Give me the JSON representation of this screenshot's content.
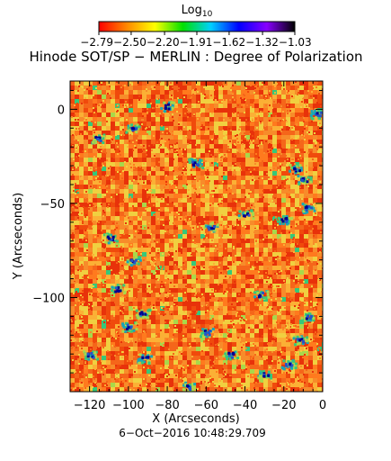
{
  "chart_data": {
    "type": "heatmap",
    "title": "Hinode SOT/SP − MERLIN : Degree of Polarization",
    "xlabel": "X (Arcseconds)",
    "ylabel": "Y (Arcseconds)",
    "footer": "6−Oct−2016 10:48:29.709",
    "xlim": [
      -130,
      0
    ],
    "ylim": [
      -150,
      15
    ],
    "xticks": [
      -120,
      -100,
      -80,
      -60,
      -40,
      -20,
      0
    ],
    "xtick_labels": [
      "−120",
      "−100",
      "−80",
      "−60",
      "−40",
      "−20",
      "0"
    ],
    "yticks": [
      0,
      -50,
      -100
    ],
    "ytick_labels": [
      "0",
      "−50",
      "−100"
    ],
    "colorbar": {
      "title_base": "Log",
      "title_sub": "10",
      "ticks": [
        -2.79,
        -2.5,
        -2.2,
        -1.91,
        -1.62,
        -1.32,
        -1.03
      ],
      "tick_labels": "−2.79−2.50−2.20−1.91−1.62−1.32−1.03",
      "colors": [
        "#ff0000",
        "#ff8800",
        "#ffff00",
        "#00e000",
        "#00d0ff",
        "#0000ff",
        "#8800ff",
        "#000000"
      ]
    },
    "map_colors": {
      "base": [
        "#e8320a",
        "#f04a0c",
        "#f5661a",
        "#ff7a1e",
        "#f78c2a",
        "#fbb035",
        "#f0d040"
      ],
      "high": [
        "#a8d84a",
        "#35c87a",
        "#18a6b8",
        "#2454c8",
        "#000090"
      ]
    },
    "features": [
      {
        "x": -116,
        "y": -15
      },
      {
        "x": -80,
        "y": 2
      },
      {
        "x": -98,
        "y": -10
      },
      {
        "x": -66,
        "y": -28
      },
      {
        "x": -14,
        "y": -31
      },
      {
        "x": -10,
        "y": -37
      },
      {
        "x": -40,
        "y": -55
      },
      {
        "x": -20,
        "y": -58
      },
      {
        "x": -58,
        "y": -62
      },
      {
        "x": -8,
        "y": -52
      },
      {
        "x": -110,
        "y": -68
      },
      {
        "x": -98,
        "y": -80
      },
      {
        "x": -106,
        "y": -95
      },
      {
        "x": -93,
        "y": -108
      },
      {
        "x": -100,
        "y": -115
      },
      {
        "x": -32,
        "y": -98
      },
      {
        "x": -60,
        "y": -118
      },
      {
        "x": -8,
        "y": -110
      },
      {
        "x": -12,
        "y": -122
      },
      {
        "x": -120,
        "y": -130
      },
      {
        "x": -92,
        "y": -132
      },
      {
        "x": -70,
        "y": -147
      },
      {
        "x": -30,
        "y": -140
      },
      {
        "x": -18,
        "y": -135
      },
      {
        "x": -3,
        "y": -2
      },
      {
        "x": -48,
        "y": -130
      }
    ]
  }
}
